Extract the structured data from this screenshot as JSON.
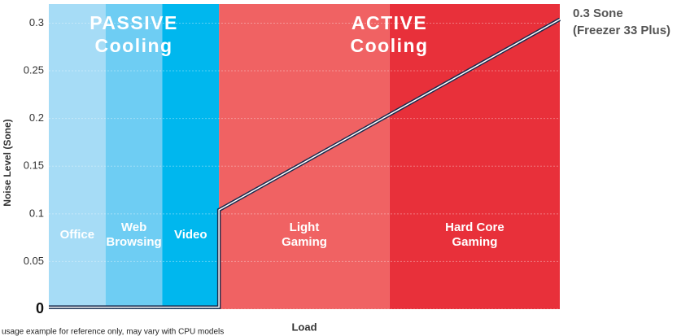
{
  "chart_data": {
    "type": "line",
    "title_blocks": [
      {
        "lines": [
          "PASSIVE",
          "Cooling"
        ],
        "from": 0,
        "to": 0.333
      },
      {
        "lines": [
          "ACTIVE",
          "Cooling"
        ],
        "from": 0.333,
        "to": 1
      }
    ],
    "bands": [
      {
        "label": [
          "Office"
        ],
        "from": 0,
        "to": 0.111,
        "color": "#a6dcf6"
      },
      {
        "label": [
          "Web",
          "Browsing"
        ],
        "from": 0.111,
        "to": 0.222,
        "color": "#6ecdf3"
      },
      {
        "label": [
          "Video"
        ],
        "from": 0.222,
        "to": 0.333,
        "color": "#00b7ee"
      },
      {
        "label": [
          "Light",
          "Gaming"
        ],
        "from": 0.333,
        "to": 0.667,
        "color": "#f06263"
      },
      {
        "label": [
          "Hard Core",
          "Gaming"
        ],
        "from": 0.667,
        "to": 1,
        "color": "#e8303a"
      }
    ],
    "x_label": "Load",
    "y_label": "Noise Level (Sone)",
    "x": [
      0,
      0.333,
      0.333,
      1
    ],
    "series": [
      {
        "name": "Freezer 33 Plus",
        "color": "#1b2c4e",
        "values": [
          0.002,
          0.002,
          0.104,
          0.304
        ]
      }
    ],
    "annotation": [
      "0.3 Sone",
      "(Freezer 33 Plus)"
    ],
    "footnote": "usage example for reference only, may vary with CPU models",
    "xlim": [
      0,
      1
    ],
    "ylim": [
      0,
      0.32
    ],
    "yticks": [
      0,
      0.05,
      0.1,
      0.15,
      0.2,
      0.25,
      0.3
    ],
    "grid": true
  }
}
